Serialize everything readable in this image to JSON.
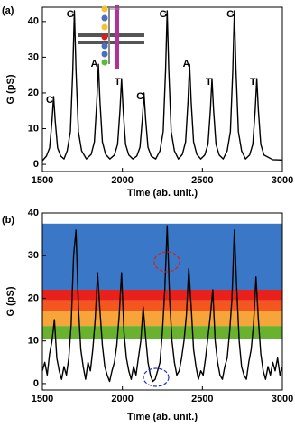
{
  "chart_data": [
    {
      "type": "line",
      "panel_label": "(a)",
      "x_label": "Time (ab. unit.)",
      "y_label": "G (pS)",
      "xlim": [
        1500,
        3000
      ],
      "ylim": [
        -2,
        44
      ],
      "xticks": [
        1500,
        2000,
        2500,
        3000
      ],
      "yticks": [
        0,
        10,
        20,
        30,
        40
      ],
      "series": [
        {
          "color": "#000000",
          "x": [
            1500,
            1525,
            1545,
            1560,
            1570,
            1580,
            1595,
            1615,
            1635,
            1655,
            1675,
            1690,
            1700,
            1710,
            1725,
            1745,
            1775,
            1805,
            1825,
            1840,
            1850,
            1860,
            1875,
            1895,
            1922,
            1950,
            1970,
            1985,
            1995,
            2005,
            2020,
            2040,
            2065,
            2090,
            2110,
            2125,
            2135,
            2145,
            2160,
            2180,
            2208,
            2235,
            2255,
            2270,
            2280,
            2290,
            2305,
            2325,
            2350,
            2375,
            2395,
            2410,
            2420,
            2430,
            2445,
            2465,
            2490,
            2515,
            2535,
            2550,
            2560,
            2570,
            2585,
            2605,
            2630,
            2655,
            2675,
            2690,
            2700,
            2710,
            2725,
            2745,
            2770,
            2795,
            2815,
            2830,
            2840,
            2850,
            2865,
            2885,
            2940,
            3000
          ],
          "values": [
            1.0,
            2.3,
            4.6,
            12.2,
            19,
            12.2,
            4.6,
            2.3,
            1.5,
            3.8,
            9.2,
            26.4,
            43,
            26.4,
            9.2,
            3.8,
            1.5,
            2.8,
            6.3,
            17.5,
            28,
            17.5,
            6.3,
            2.8,
            1.5,
            2.6,
            5.6,
            15.2,
            24,
            15.2,
            5.6,
            2.6,
            1.5,
            2.3,
            4.8,
            12.8,
            20,
            12.8,
            4.8,
            2.3,
            1.5,
            3.8,
            9.2,
            26.4,
            43,
            26.4,
            9.2,
            3.8,
            1.5,
            2.8,
            6.3,
            17.5,
            28,
            17.5,
            6.3,
            2.8,
            1.5,
            2.6,
            5.6,
            15.2,
            24,
            15.2,
            5.6,
            2.6,
            1.5,
            3.8,
            9.2,
            26.4,
            43,
            26.4,
            9.2,
            3.8,
            1.5,
            2.6,
            5.6,
            15.2,
            24,
            15.2,
            5.6,
            2.6,
            1.3,
            1.2
          ]
        }
      ],
      "annotations": [
        {
          "text": "C",
          "x": 1545,
          "y": 18
        },
        {
          "text": "G",
          "x": 1675,
          "y": 42
        },
        {
          "text": "A",
          "x": 1825,
          "y": 28
        },
        {
          "text": "T",
          "x": 1970,
          "y": 23
        },
        {
          "text": "C",
          "x": 2110,
          "y": 19
        },
        {
          "text": "G",
          "x": 2255,
          "y": 42
        },
        {
          "text": "A",
          "x": 2400,
          "y": 28
        },
        {
          "text": "T",
          "x": 2540,
          "y": 23
        },
        {
          "text": "G",
          "x": 2675,
          "y": 42
        },
        {
          "text": "T",
          "x": 2815,
          "y": 23
        }
      ]
    },
    {
      "type": "line",
      "panel_label": "(b)",
      "x_label": "Time (ab. unit.)",
      "y_label": "G (pS)",
      "xlim": [
        1500,
        3000
      ],
      "ylim": [
        -1.5,
        40
      ],
      "xticks": [
        1500,
        2000,
        2500,
        3000
      ],
      "yticks": [
        0,
        10,
        20,
        30,
        40
      ],
      "bands": [
        {
          "range": [
            22,
            37.5
          ],
          "color": "#3a77c6"
        },
        {
          "range": [
            19.5,
            22
          ],
          "color": "#e8211c"
        },
        {
          "range": [
            17,
            19.5
          ],
          "color": "#f4561f"
        },
        {
          "range": [
            13.5,
            17
          ],
          "color": "#f6a53a"
        },
        {
          "range": [
            10.5,
            13.5
          ],
          "color": "#68b22f"
        }
      ],
      "series": [
        {
          "color": "#000000",
          "x": [
            1500,
            1515,
            1530,
            1545,
            1560,
            1575,
            1590,
            1605,
            1620,
            1635,
            1650,
            1665,
            1680,
            1695,
            1710,
            1725,
            1740,
            1755,
            1770,
            1785,
            1800,
            1815,
            1830,
            1845,
            1860,
            1875,
            1890,
            1905,
            1920,
            1935,
            1950,
            1965,
            1980,
            1995,
            2010,
            2025,
            2040,
            2055,
            2070,
            2085,
            2100,
            2115,
            2130,
            2145,
            2160,
            2175,
            2190,
            2205,
            2220,
            2235,
            2250,
            2265,
            2280,
            2295,
            2310,
            2325,
            2340,
            2355,
            2370,
            2385,
            2400,
            2415,
            2430,
            2445,
            2460,
            2475,
            2490,
            2505,
            2520,
            2535,
            2550,
            2565,
            2580,
            2595,
            2610,
            2625,
            2640,
            2655,
            2670,
            2685,
            2700,
            2715,
            2730,
            2745,
            2760,
            2775,
            2790,
            2805,
            2820,
            2835,
            2850,
            2865,
            2880,
            2895,
            2910,
            2925,
            2940,
            2955,
            2970,
            2985,
            3000
          ],
          "values": [
            3,
            5,
            2,
            7,
            10,
            15,
            6,
            3,
            1,
            4,
            2,
            6,
            14,
            30,
            36,
            18,
            8,
            4,
            1,
            5,
            3,
            8,
            15,
            26,
            17,
            9,
            4,
            2,
            0.5,
            3,
            5,
            9,
            16,
            26,
            12,
            6,
            3,
            1,
            4,
            2,
            6,
            10,
            18,
            11,
            5,
            2,
            0.5,
            1,
            3,
            5,
            12,
            22,
            37,
            20,
            10,
            5,
            2,
            3,
            6,
            10,
            16,
            27,
            18,
            8,
            4,
            1,
            3,
            2,
            6,
            11,
            16,
            22,
            10,
            5,
            2,
            1,
            4,
            6,
            12,
            20,
            36,
            22,
            10,
            4,
            2,
            1,
            5,
            8,
            14,
            25,
            15,
            7,
            3,
            1,
            4,
            2,
            5,
            3,
            6,
            2,
            4
          ]
        }
      ]
    }
  ]
}
